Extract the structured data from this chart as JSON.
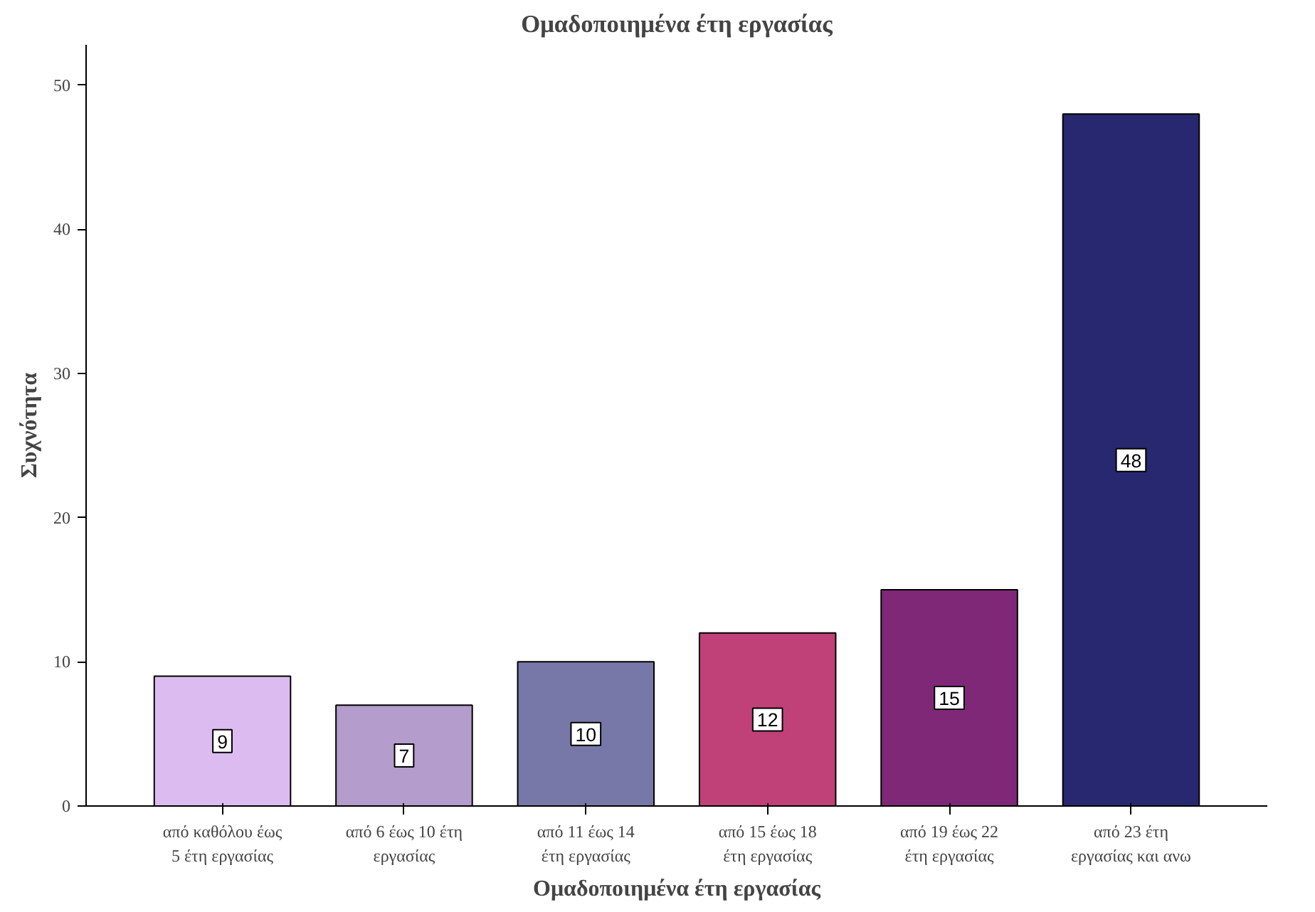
{
  "chart_data": {
    "type": "bar",
    "title": "Ομαδοποιημένα έτη εργασίας",
    "xlabel": "Ομαδοποιημένα έτη εργασίας",
    "ylabel": "Συχνότητα",
    "categories": [
      "από καθόλου έως\n5 έτη εργασίας",
      "από 6 έως 10 έτη\nεργασίας",
      "από 11 έως 14\nέτη εργασίας",
      "από 15 έως 18\nέτη εργασίας",
      "από 19 έως 22\nέτη εργασίας",
      "από 23 έτη\nεργασίας και ανω"
    ],
    "values": [
      9,
      7,
      10,
      12,
      15,
      48
    ],
    "colors": [
      "#dcbcf0",
      "#b49ccc",
      "#7878a8",
      "#c04078",
      "#802878",
      "#282870"
    ],
    "ylim": [
      0,
      52.8
    ],
    "yticks": [
      0,
      10,
      20,
      30,
      40,
      50
    ],
    "grid": false,
    "data_labels": true
  }
}
